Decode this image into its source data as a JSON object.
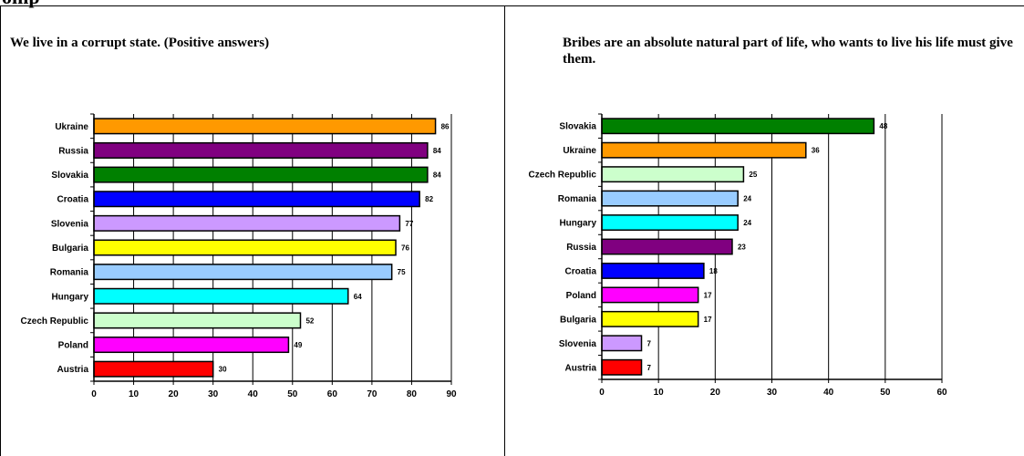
{
  "page": {
    "header_fragment": "omp"
  },
  "chart_data": [
    {
      "type": "bar",
      "orientation": "horizontal",
      "title": "We live in a corrupt state. (Positive answers)",
      "categories": [
        "Ukraine",
        "Russia",
        "Slovakia",
        "Croatia",
        "Slovenia",
        "Bulgaria",
        "Romania",
        "Hungary",
        "Czech Republic",
        "Poland",
        "Austria"
      ],
      "values": [
        86,
        84,
        84,
        82,
        77,
        76,
        75,
        64,
        52,
        49,
        30
      ],
      "colors": [
        "#ff9900",
        "#800080",
        "#008000",
        "#0000ff",
        "#cc99ff",
        "#ffff00",
        "#99ccff",
        "#00ffff",
        "#ccffcc",
        "#ff00ff",
        "#ff0000"
      ],
      "xlim": [
        0,
        90
      ],
      "xticks": [
        0,
        10,
        20,
        30,
        40,
        50,
        60,
        70,
        80,
        90
      ],
      "grid": true,
      "xlabel": "",
      "ylabel": ""
    },
    {
      "type": "bar",
      "orientation": "horizontal",
      "title": "Bribes are an absolute natural part of life, who wants to live his life must give them.",
      "categories": [
        "Slovakia",
        "Ukraine",
        "Czech Republic",
        "Romania",
        "Hungary",
        "Russia",
        "Croatia",
        "Poland",
        "Bulgaria",
        "Slovenia",
        "Austria"
      ],
      "values": [
        48,
        36,
        25,
        24,
        24,
        23,
        18,
        17,
        17,
        7,
        7
      ],
      "colors": [
        "#008000",
        "#ff9900",
        "#ccffcc",
        "#99ccff",
        "#00ffff",
        "#800080",
        "#0000ff",
        "#ff00ff",
        "#ffff00",
        "#cc99ff",
        "#ff0000"
      ],
      "xlim": [
        0,
        60
      ],
      "xticks": [
        0,
        10,
        20,
        30,
        40,
        50,
        60
      ],
      "grid": true,
      "xlabel": "",
      "ylabel": ""
    }
  ]
}
